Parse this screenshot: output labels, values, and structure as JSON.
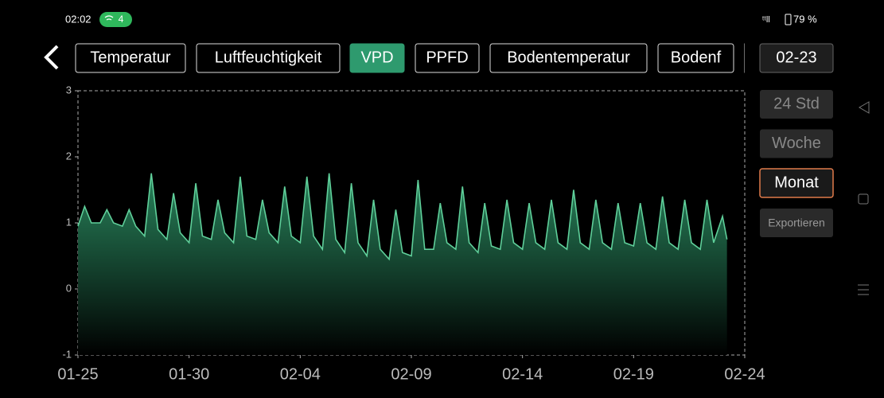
{
  "status_bar": {
    "time": "02:02",
    "badge": "4",
    "battery": "79 %"
  },
  "tabs": [
    "Temperatur",
    "Luftfeuchtigkeit",
    "VPD",
    "PPFD",
    "Bodentemperatur",
    "Bodenf"
  ],
  "date_button": "02-23",
  "range_buttons": [
    "24 Std",
    "Woche",
    "Monat"
  ],
  "export_button": "Exportieren",
  "chart_data": {
    "type": "area",
    "x": [
      0,
      0.3,
      0.6,
      1,
      1.3,
      1.6,
      2,
      2.3,
      2.6,
      3,
      3.3,
      3.6,
      4,
      4.3,
      4.6,
      5,
      5.3,
      5.6,
      6,
      6.3,
      6.6,
      7,
      7.3,
      7.6,
      8,
      8.3,
      8.6,
      9,
      9.3,
      9.6,
      10,
      10.3,
      10.6,
      11,
      11.3,
      11.6,
      12,
      12.3,
      12.6,
      13,
      13.3,
      13.6,
      14,
      14.3,
      14.6,
      15,
      15.3,
      15.6,
      16,
      16.3,
      16.6,
      17,
      17.3,
      17.6,
      18,
      18.3,
      18.6,
      19,
      19.3,
      19.6,
      20,
      20.3,
      20.6,
      21,
      21.3,
      21.6,
      22,
      22.3,
      22.6,
      23,
      23.3,
      23.6,
      24,
      24.3,
      24.6,
      25,
      25.3,
      25.6,
      26,
      26.3,
      26.6,
      27,
      27.3,
      27.6,
      28,
      28.3,
      28.6,
      29,
      29.2
    ],
    "values": [
      0.95,
      1.25,
      1.0,
      1.0,
      1.2,
      1.0,
      0.95,
      1.2,
      0.95,
      0.8,
      1.75,
      0.9,
      0.75,
      1.45,
      0.85,
      0.7,
      1.6,
      0.8,
      0.75,
      1.35,
      0.85,
      0.7,
      1.7,
      0.8,
      0.75,
      1.35,
      0.85,
      0.7,
      1.55,
      0.8,
      0.7,
      1.7,
      0.8,
      0.6,
      1.75,
      0.75,
      0.55,
      1.6,
      0.7,
      0.5,
      1.35,
      0.6,
      0.45,
      1.2,
      0.55,
      0.5,
      1.65,
      0.6,
      0.6,
      1.3,
      0.7,
      0.6,
      1.55,
      0.7,
      0.55,
      1.3,
      0.65,
      0.6,
      1.35,
      0.7,
      0.6,
      1.3,
      0.7,
      0.6,
      1.35,
      0.7,
      0.6,
      1.5,
      0.7,
      0.6,
      1.35,
      0.7,
      0.6,
      1.3,
      0.7,
      0.65,
      1.3,
      0.7,
      0.6,
      1.4,
      0.7,
      0.6,
      1.35,
      0.7,
      0.6,
      1.35,
      0.7,
      1.1,
      0.75
    ],
    "color": "#5fcf9a",
    "xlim": [
      0,
      30
    ],
    "xticks": [
      {
        "value": 0,
        "label": "01-25"
      },
      {
        "value": 5,
        "label": "01-30"
      },
      {
        "value": 10,
        "label": "02-04"
      },
      {
        "value": 15,
        "label": "02-09"
      },
      {
        "value": 20,
        "label": "02-14"
      },
      {
        "value": 25,
        "label": "02-19"
      },
      {
        "value": 30,
        "label": "02-24"
      }
    ],
    "ylim": [
      -1,
      3
    ],
    "yticks": [
      -1,
      0,
      1,
      2,
      3
    ]
  }
}
